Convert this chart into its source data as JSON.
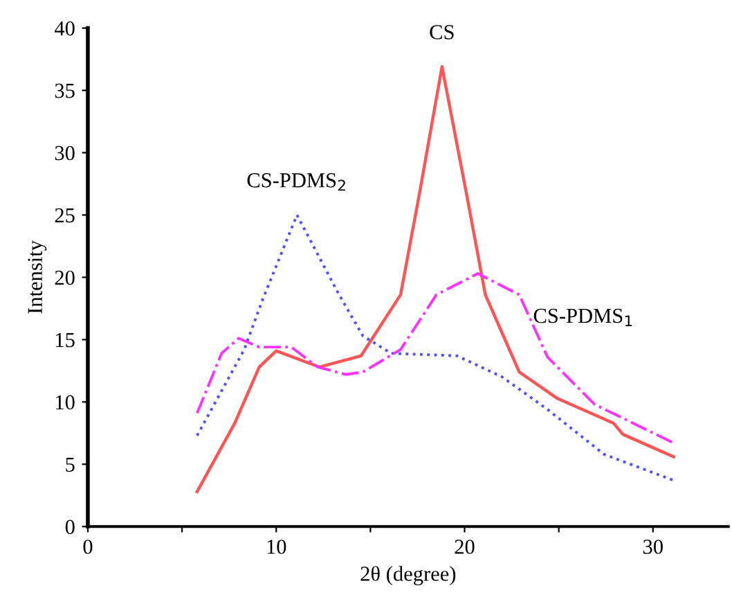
{
  "chart_data": {
    "type": "line",
    "xlabel": "2θ (degree)",
    "ylabel": "Intensity",
    "xlim": [
      0,
      34
    ],
    "ylim": [
      0,
      40
    ],
    "xticks": [
      0,
      {
        "value": 5,
        "label": null
      },
      10,
      {
        "value": 15,
        "label": null
      },
      20,
      {
        "value": 25,
        "label": null
      },
      30
    ],
    "yticks": [
      0,
      5,
      10,
      15,
      20,
      25,
      30,
      35,
      40
    ],
    "grid": false,
    "legend": false,
    "marker": "none",
    "series": [
      {
        "name": "CS",
        "color": "#ff5555",
        "line_style": "solid",
        "x": [
          5.8,
          7.8,
          9.1,
          10,
          12.3,
          14.5,
          16.6,
          17.6,
          18.8,
          20.1,
          21.1,
          22.9,
          24.9,
          27.9,
          28.4,
          31.1
        ],
        "values": [
          2.8,
          8.3,
          12.8,
          14.1,
          12.8,
          13.7,
          18.6,
          26.7,
          36.9,
          26.7,
          18.6,
          12.4,
          10.3,
          8.3,
          7.4,
          5.6
        ]
      },
      {
        "name": "CS-PDMS$_{2}$",
        "color": "#5050ff",
        "line_style": "dotted",
        "x": [
          5.8,
          8.3,
          9.3,
          11.1,
          13.3,
          14.6,
          16.1,
          19.6,
          22,
          24.4,
          27.4,
          31.1
        ],
        "values": [
          7.3,
          14.2,
          18.3,
          25,
          18.7,
          15.3,
          13.9,
          13.7,
          12,
          9.4,
          5.8,
          3.7
        ]
      },
      {
        "name": "CS-PDMS$_{1}$",
        "color": "#ff33ff",
        "line_style": "dashed",
        "x": [
          5.8,
          7.1,
          8,
          9.1,
          10.8,
          12.2,
          13.7,
          14.6,
          16.6,
          18.5,
          20.7,
          22.9,
          24.4,
          26.9,
          31.1
        ],
        "values": [
          9.1,
          13.9,
          15.1,
          14.4,
          14.4,
          12.8,
          12.2,
          12.4,
          14.2,
          18.6,
          20.3,
          18.6,
          13.6,
          9.8,
          6.7
        ]
      }
    ]
  }
}
